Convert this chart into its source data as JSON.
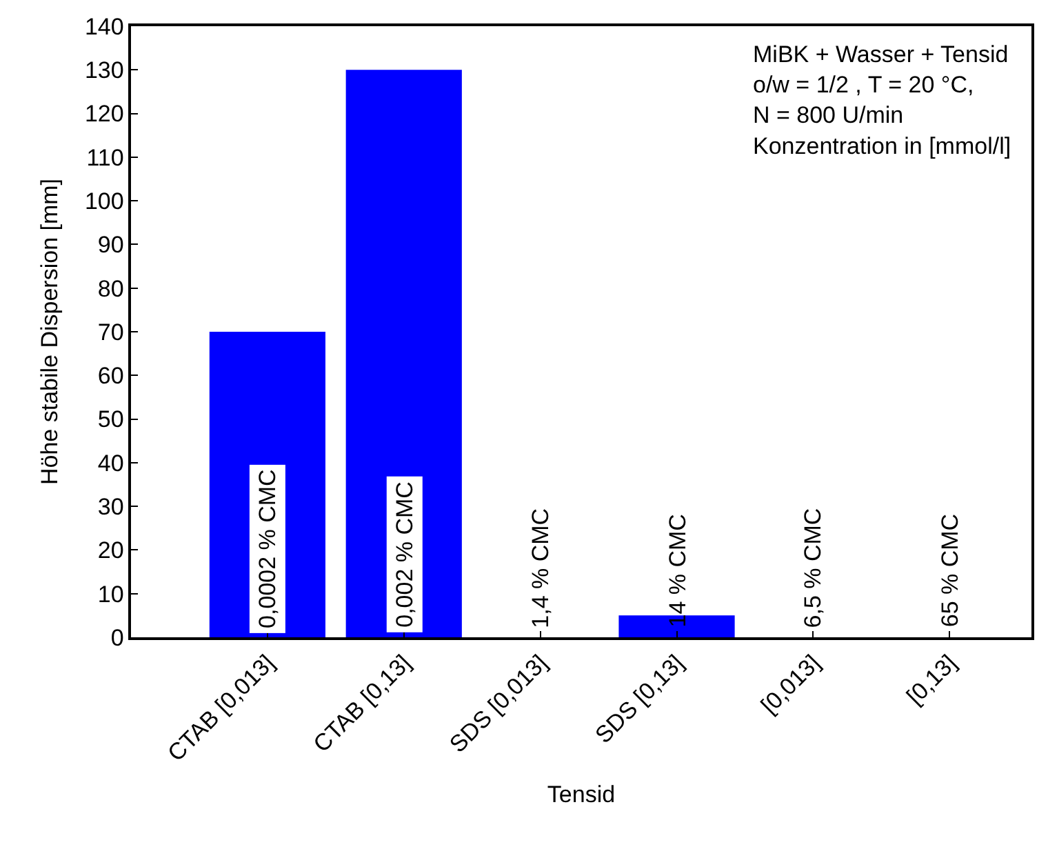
{
  "chart_data": {
    "type": "bar",
    "xlabel": "Tensid",
    "ylabel": "Höhe stabile Dispersion [mm]",
    "categories": [
      "CTAB [0,013]",
      "CTAB [0,13]",
      "SDS [0,013]",
      "SDS [0,13]",
      "[0,013]",
      "[0,13]"
    ],
    "values": [
      70,
      130,
      0,
      5,
      0,
      0
    ],
    "color": "#0000ff",
    "ylim": [
      0,
      140
    ],
    "yticks": [
      0,
      10,
      20,
      30,
      40,
      50,
      60,
      70,
      80,
      90,
      100,
      110,
      120,
      130,
      140
    ],
    "annotations": [
      "0,0002 % CMC",
      "0,002 % CMC",
      "1,4 % CMC",
      "14 % CMC",
      "6,5 % CMC",
      "65 % CMC",
      "MiBK + Wasser + Tensid\no/w = 1/2 , T = 20 °C,\nN = 800 U/min\nKonzentration in [mmol/l]"
    ]
  }
}
